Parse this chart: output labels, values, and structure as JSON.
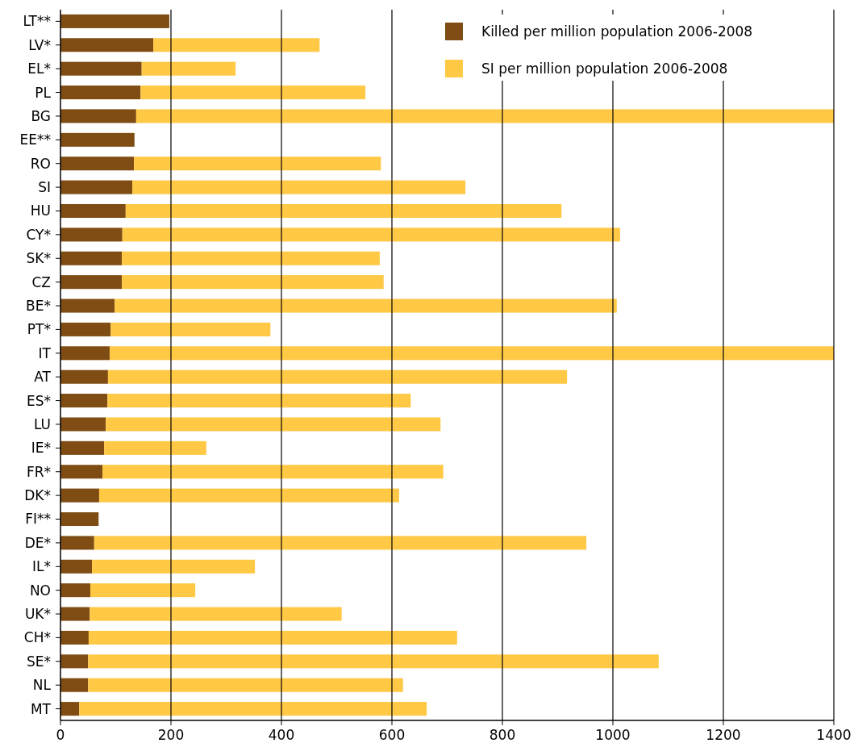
{
  "chart_data": {
    "type": "bar",
    "orientation": "horizontal",
    "stacked": true,
    "categories": [
      "LT**",
      "LV*",
      "EL*",
      "PL",
      "BG",
      "EE**",
      "RO",
      "SI",
      "HU",
      "CY*",
      "SK*",
      "CZ",
      "BE*",
      "PT*",
      "IT",
      "AT",
      "ES*",
      "LU",
      "IE*",
      "FR*",
      "DK*",
      "FI**",
      "DE*",
      "IL*",
      "NO",
      "UK*",
      "CH*",
      "SE*",
      "NL",
      "MT"
    ],
    "series": [
      {
        "name": "Killed per million population 2006-2008",
        "color": "#7f4d14",
        "values": [
          197,
          168,
          147,
          145,
          137,
          134,
          133,
          130,
          118,
          112,
          111,
          111,
          98,
          91,
          89,
          86,
          85,
          82,
          79,
          76,
          70,
          69,
          61,
          57,
          54,
          53,
          51,
          50,
          50,
          34
        ]
      },
      {
        "name": "SI per million population 2006-2008",
        "color": "#ffc845",
        "values": [
          null,
          301,
          170,
          407,
          1263,
          null,
          447,
          603,
          789,
          901,
          467,
          474,
          909,
          289,
          1311,
          831,
          549,
          606,
          185,
          617,
          543,
          null,
          891,
          295,
          190,
          456,
          667,
          1033,
          570,
          629
        ]
      }
    ],
    "xlim": [
      0,
      1400
    ],
    "xticks": [
      0,
      200,
      400,
      600,
      800,
      1000,
      1200,
      1400
    ],
    "grid": "x",
    "legend": "top right"
  }
}
